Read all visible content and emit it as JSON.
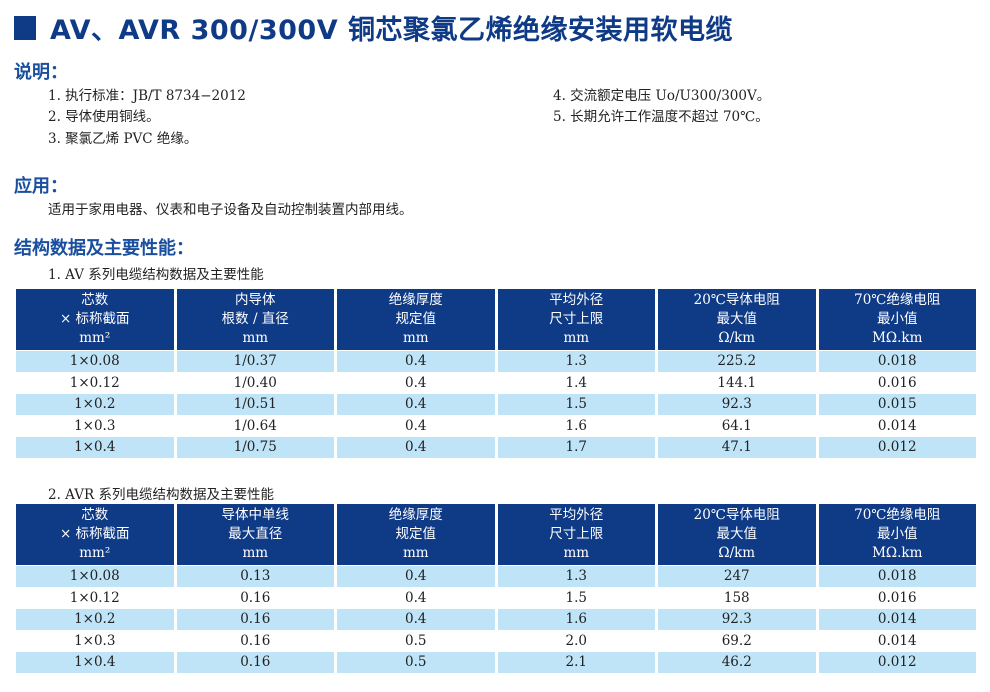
{
  "title": "AV、AVR 300/300V 铜芯聚氯乙烯绝缘安装用软电缆",
  "desc": {
    "heading": "说明：",
    "items": [
      "1. 执行标准：JB/T  8734−2012",
      "2. 导体使用铜线。",
      "3. 聚氯乙烯 PVC 绝缘。",
      "4. 交流额定电压 Uo/U300/300V。",
      "5. 长期允许工作温度不超过 70℃。"
    ]
  },
  "app": {
    "heading": "应用：",
    "text": "适用于家用电器、仪表和电子设备及自动控制装置内部用线。"
  },
  "perf": {
    "heading": "结构数据及主要性能："
  },
  "colors": {
    "header": "#0e3a86",
    "row_alt": "#bfe4f8",
    "heading": "#1a4f9e"
  },
  "tables": [
    {
      "caption": "1. AV 系列电缆结构数据及主要性能",
      "headers": [
        [
          "芯数",
          "× 标称截面",
          "mm²"
        ],
        [
          "内导体",
          "根数 / 直径",
          "mm"
        ],
        [
          "绝缘厚度",
          "规定值",
          "mm"
        ],
        [
          "平均外径",
          "尺寸上限",
          "mm"
        ],
        [
          "20℃导体电阻",
          "最大值",
          "Ω/km"
        ],
        [
          "70℃绝缘电阻",
          "最小值",
          "MΩ.km"
        ]
      ],
      "rows": [
        [
          "1×0.08",
          "1/0.37",
          "0.4",
          "1.3",
          "225.2",
          "0.018"
        ],
        [
          "1×0.12",
          "1/0.40",
          "0.4",
          "1.4",
          "144.1",
          "0.016"
        ],
        [
          "1×0.2",
          "1/0.51",
          "0.4",
          "1.5",
          "92.3",
          "0.015"
        ],
        [
          "1×0.3",
          "1/0.64",
          "0.4",
          "1.6",
          "64.1",
          "0.014"
        ],
        [
          "1×0.4",
          "1/0.75",
          "0.4",
          "1.7",
          "47.1",
          "0.012"
        ]
      ]
    },
    {
      "caption": "2. AVR 系列电缆结构数据及主要性能",
      "headers": [
        [
          "芯数",
          "× 标称截面",
          "mm²"
        ],
        [
          "导体中单线",
          "最大直径",
          "mm"
        ],
        [
          "绝缘厚度",
          "规定值",
          "mm"
        ],
        [
          "平均外径",
          "尺寸上限",
          "mm"
        ],
        [
          "20℃导体电阻",
          "最大值",
          "Ω/km"
        ],
        [
          "70℃绝缘电阻",
          "最小值",
          "MΩ.km"
        ]
      ],
      "rows": [
        [
          "1×0.08",
          "0.13",
          "0.4",
          "1.3",
          "247",
          "0.018"
        ],
        [
          "1×0.12",
          "0.16",
          "0.4",
          "1.5",
          "158",
          "0.016"
        ],
        [
          "1×0.2",
          "0.16",
          "0.4",
          "1.6",
          "92.3",
          "0.014"
        ],
        [
          "1×0.3",
          "0.16",
          "0.5",
          "2.0",
          "69.2",
          "0.014"
        ],
        [
          "1×0.4",
          "0.16",
          "0.5",
          "2.1",
          "46.2",
          "0.012"
        ]
      ]
    }
  ]
}
